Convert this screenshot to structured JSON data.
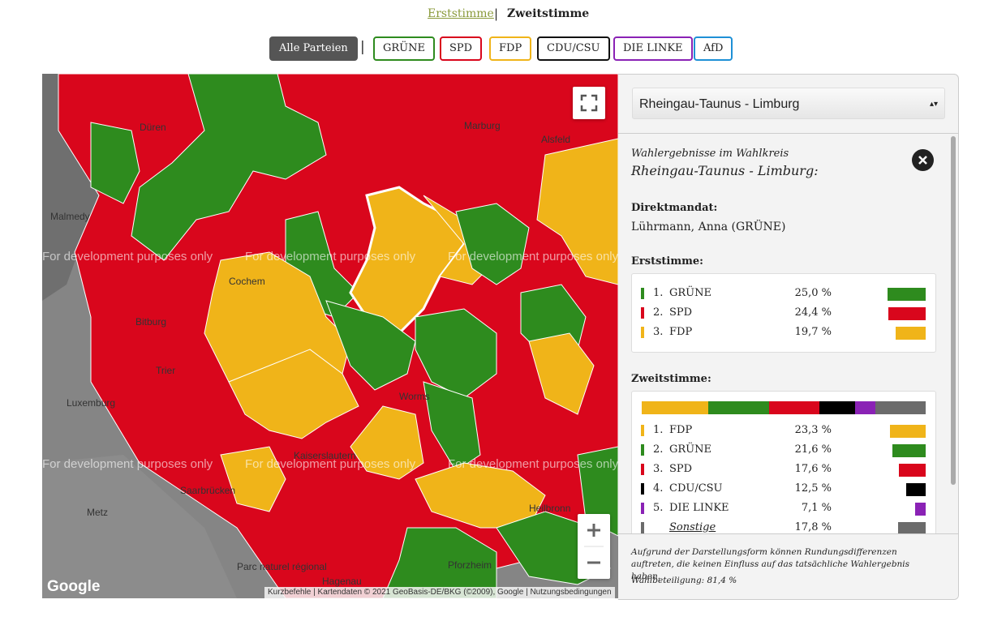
{
  "tabs": [
    "Erststimme",
    "Zweitstimme"
  ],
  "party_filters": [
    "Alle Parteien",
    "GRÜNE",
    "SPD",
    "FDP",
    "CDU/CSU",
    "DIE LINKE",
    "AfD"
  ],
  "map": {
    "watermark": "For development purposes only",
    "places": [
      "Düren",
      "Marburg",
      "Malmedy",
      "Bitburg",
      "Trier",
      "Luxemburg",
      "Metz",
      "Kaiserslautern",
      "Saarbrücken",
      "Parc naturel régional",
      "Hagenau",
      "Pforzheim",
      "Heilbronn",
      "Alsfeld",
      "Cochem",
      "Worms"
    ],
    "attribution": {
      "logo": "Google",
      "shortcuts": "Kurzbefehle",
      "data": "Kartendaten © 2021 GeoBasis-DE/BKG (©2009), Google",
      "terms": "Nutzungsbedingungen"
    }
  },
  "panel": {
    "select": "Rheingau-Taunus - Limburg",
    "intro": "Wahlergebnisse im Wahlkreis",
    "district": "Rheingau-Taunus - Limburg:",
    "direct_heading": "Direktmandat:",
    "direct": "Lührmann, Anna (GRÜNE)",
    "erst_heading": "Erststimme:",
    "erst": [
      {
        "rank": "1.",
        "party": "GRÜNE",
        "value": 25.0,
        "label": "25,0 %",
        "color": "#2e8b1e"
      },
      {
        "rank": "2.",
        "party": "SPD",
        "value": 24.4,
        "label": "24,4 %",
        "color": "#d9061c"
      },
      {
        "rank": "3.",
        "party": "FDP",
        "value": 19.7,
        "label": "19,7 %",
        "color": "#f0b419"
      }
    ],
    "zweit_heading": "Zweitstimme:",
    "zweit": [
      {
        "rank": "1.",
        "party": "FDP",
        "value": 23.3,
        "label": "23,3 %",
        "color": "#f0b419"
      },
      {
        "rank": "2.",
        "party": "GRÜNE",
        "value": 21.6,
        "label": "21,6 %",
        "color": "#2e8b1e"
      },
      {
        "rank": "3.",
        "party": "SPD",
        "value": 17.6,
        "label": "17,6 %",
        "color": "#d9061c"
      },
      {
        "rank": "4.",
        "party": "CDU/CSU",
        "value": 12.5,
        "label": "12,5 %",
        "color": "#000000"
      },
      {
        "rank": "5.",
        "party": "DIE LINKE",
        "value": 7.1,
        "label": "7,1 %",
        "color": "#8a22b5"
      },
      {
        "party": "Sonstige",
        "value": 17.8,
        "label": "17,8 %",
        "color": "#6b6b6b"
      }
    ],
    "footnote": "Aufgrund der Darstellungsform können Rundungsdifferenzen auftreten, die keinen Einfluss auf das tatsächliche Wahlergebnis haben.",
    "turnout": "Wahlbeteiligung: 81,4 %"
  }
}
